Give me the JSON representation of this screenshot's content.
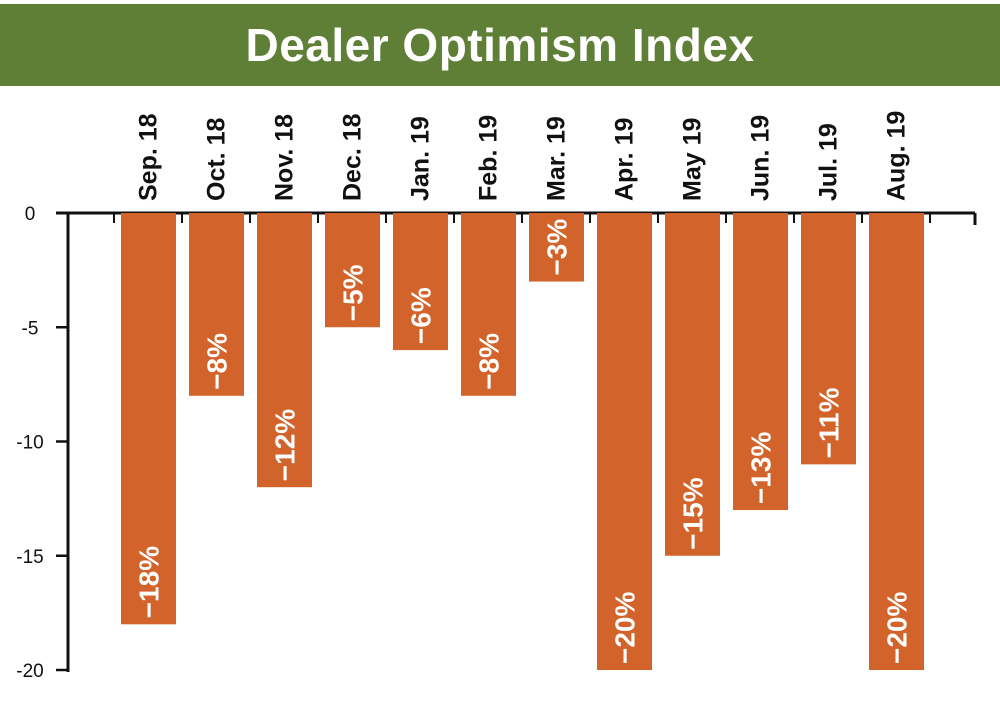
{
  "title": "Dealer Optimism Index",
  "colors": {
    "title_bg": "#5e7f35",
    "bar": "#d2632a",
    "axis": "#111111",
    "label_text": "#ffffff"
  },
  "chart_data": {
    "type": "bar",
    "title": "Dealer Optimism Index",
    "xlabel": "",
    "ylabel": "",
    "categories": [
      "Sep. 18",
      "Oct. 18",
      "Nov. 18",
      "Dec. 18",
      "Jan. 19",
      "Feb. 19",
      "Mar. 19",
      "Apr. 19",
      "May 19",
      "Jun. 19",
      "Jul. 19",
      "Aug. 19"
    ],
    "values": [
      -18,
      -8,
      -12,
      -5,
      -6,
      -8,
      -3,
      -20,
      -15,
      -13,
      -11,
      -20
    ],
    "data_labels": [
      "−18%",
      "−8%",
      "−12%",
      "−5%",
      "−6%",
      "−8%",
      "−3%",
      "−20%",
      "−15%",
      "−13%",
      "−11%",
      "−20%"
    ],
    "y_ticks": [
      0,
      -5,
      -10,
      -15,
      -20
    ],
    "y_tick_labels": [
      "0",
      "-5",
      "-10",
      "-15",
      "-20"
    ],
    "ylim": [
      -20,
      0
    ],
    "grid": false,
    "legend": "none",
    "category_labels_position": "top, rotated vertical"
  }
}
